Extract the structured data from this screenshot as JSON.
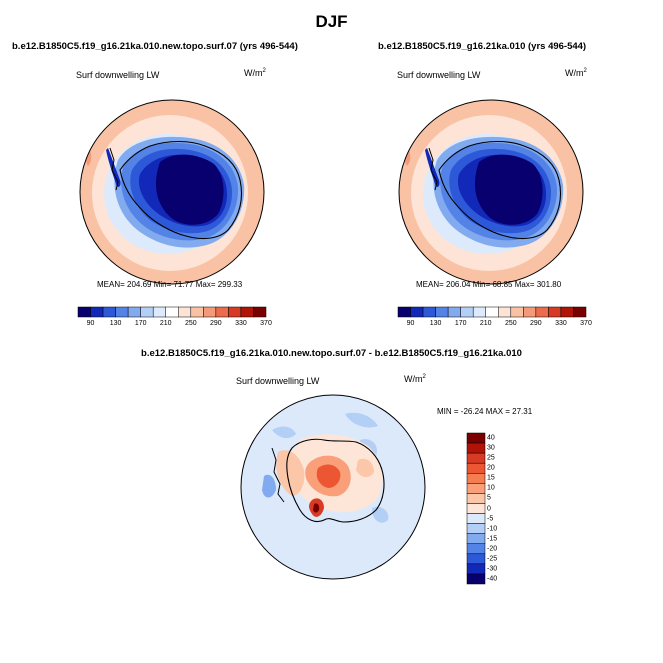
{
  "figure": {
    "season": "DJF",
    "variable": "Surf downwelling LW",
    "units_base": "W/m",
    "units_exp": "2"
  },
  "panels": {
    "left": {
      "case": "b.e12.B1850C5.f19_g16.21ka.010.new.topo.surf.07 (yrs 496-544)",
      "stats": "MEAN= 204.69  Min=  71.77  Max= 299.33"
    },
    "right": {
      "case": "b.e12.B1850C5.f19_g16.21ka.010 (yrs 496-544)",
      "stats": "MEAN= 206.04  Min=  68.85  Max= 301.80"
    },
    "diff": {
      "case": "b.e12.B1850C5.f19_g16.21ka.010.new.topo.surf.07 - b.e12.B1850C5.f19_g16.21ka.010",
      "stats": "MIN = -26.24 MAX =  27.31"
    }
  },
  "colorbar_abs": {
    "labels": [
      "90",
      "130",
      "170",
      "210",
      "250",
      "290",
      "330",
      "370"
    ],
    "colors": [
      "#08006e",
      "#1228b8",
      "#2d59d8",
      "#5383e6",
      "#82aaee",
      "#b4cff6",
      "#ddeafc",
      "#ffffff",
      "#fde4d6",
      "#f9c2a4",
      "#f49a78",
      "#ec6b4d",
      "#d83b24",
      "#b01409",
      "#7a0000"
    ]
  },
  "colorbar_diff": {
    "labels": [
      "40",
      "30",
      "25",
      "20",
      "15",
      "10",
      "5",
      "0",
      "-5",
      "-10",
      "-15",
      "-20",
      "-25",
      "-30",
      "-40"
    ],
    "colors": [
      "#7a0000",
      "#b01409",
      "#d83b24",
      "#ec5632",
      "#f47d52",
      "#f9a07a",
      "#fcc6a8",
      "#fde6d8",
      "#dbe9fb",
      "#b4cff6",
      "#82aaee",
      "#5383e6",
      "#2d59d8",
      "#1228b8",
      "#08006e"
    ]
  }
}
